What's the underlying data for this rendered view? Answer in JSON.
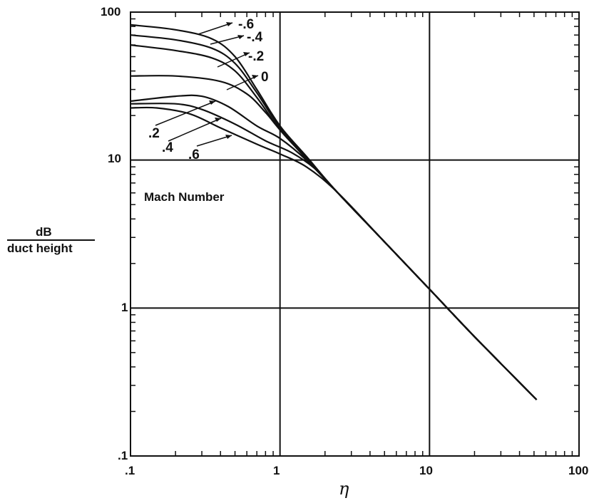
{
  "chart_data": {
    "type": "line",
    "title": "",
    "xlabel": "η",
    "ylabel_top": "dB",
    "ylabel_bottom": "duct height",
    "x_scale": "log",
    "y_scale": "log",
    "xlim": [
      0.1,
      100
    ],
    "ylim": [
      0.1,
      100
    ],
    "grid": true,
    "x_ticks": [
      {
        "value": 0.1,
        "label": ".1"
      },
      {
        "value": 1,
        "label": "1"
      },
      {
        "value": 10,
        "label": "10"
      },
      {
        "value": 100,
        "label": "100"
      }
    ],
    "y_ticks": [
      {
        "value": 0.1,
        "label": ".1"
      },
      {
        "value": 1,
        "label": "1"
      },
      {
        "value": 10,
        "label": "10"
      },
      {
        "value": 100,
        "label": "100"
      }
    ],
    "annotation": "Mach Number",
    "series": [
      {
        "name": "-.6",
        "points": [
          [
            0.1,
            82
          ],
          [
            0.2,
            76
          ],
          [
            0.35,
            66
          ],
          [
            0.5,
            50
          ],
          [
            0.7,
            30
          ],
          [
            1.0,
            17
          ],
          [
            1.5,
            10.6
          ],
          [
            2.4,
            6.1
          ],
          [
            5,
            2.8
          ],
          [
            10,
            1.34
          ],
          [
            20,
            0.64
          ],
          [
            52,
            0.24
          ]
        ]
      },
      {
        "name": "-.4",
        "points": [
          [
            0.1,
            70
          ],
          [
            0.2,
            65
          ],
          [
            0.35,
            57
          ],
          [
            0.5,
            45
          ],
          [
            0.7,
            28.5
          ],
          [
            1.0,
            16.5
          ],
          [
            1.5,
            10.5
          ],
          [
            2.4,
            6.1
          ],
          [
            5,
            2.8
          ],
          [
            10,
            1.34
          ],
          [
            20,
            0.64
          ],
          [
            52,
            0.24
          ]
        ]
      },
      {
        "name": "-.2",
        "points": [
          [
            0.1,
            60
          ],
          [
            0.2,
            55
          ],
          [
            0.35,
            49
          ],
          [
            0.5,
            40
          ],
          [
            0.7,
            26.5
          ],
          [
            1.0,
            16
          ],
          [
            1.5,
            10.3
          ],
          [
            2.4,
            6.1
          ],
          [
            5,
            2.8
          ],
          [
            10,
            1.34
          ],
          [
            20,
            0.64
          ],
          [
            52,
            0.24
          ]
        ]
      },
      {
        "name": "0",
        "points": [
          [
            0.1,
            37
          ],
          [
            0.2,
            37
          ],
          [
            0.4,
            34
          ],
          [
            0.6,
            28
          ],
          [
            0.8,
            21
          ],
          [
            1.0,
            16
          ],
          [
            1.5,
            10.2
          ],
          [
            2.4,
            6.1
          ],
          [
            5,
            2.8
          ],
          [
            10,
            1.34
          ],
          [
            20,
            0.64
          ],
          [
            52,
            0.24
          ]
        ]
      },
      {
        "name": ".2",
        "points": [
          [
            0.1,
            25
          ],
          [
            0.2,
            27
          ],
          [
            0.3,
            27
          ],
          [
            0.45,
            23
          ],
          [
            0.7,
            17
          ],
          [
            1.0,
            14
          ],
          [
            1.5,
            10
          ],
          [
            2.4,
            6.1
          ],
          [
            5,
            2.8
          ],
          [
            10,
            1.34
          ],
          [
            20,
            0.64
          ],
          [
            52,
            0.24
          ]
        ]
      },
      {
        "name": ".4",
        "points": [
          [
            0.1,
            24
          ],
          [
            0.2,
            24
          ],
          [
            0.3,
            22
          ],
          [
            0.5,
            17.5
          ],
          [
            0.8,
            13.5
          ],
          [
            1.2,
            11.2
          ],
          [
            1.7,
            8.8
          ],
          [
            2.4,
            6.1
          ],
          [
            5,
            2.8
          ],
          [
            10,
            1.34
          ],
          [
            20,
            0.64
          ],
          [
            52,
            0.24
          ]
        ]
      },
      {
        "name": ".6",
        "points": [
          [
            0.1,
            22.5
          ],
          [
            0.15,
            22.5
          ],
          [
            0.25,
            20.5
          ],
          [
            0.4,
            16.5
          ],
          [
            0.7,
            12.8
          ],
          [
            1.0,
            11
          ],
          [
            1.5,
            9
          ],
          [
            2.4,
            6.1
          ],
          [
            5,
            2.8
          ],
          [
            10,
            1.34
          ],
          [
            20,
            0.64
          ],
          [
            52,
            0.24
          ]
        ]
      }
    ]
  }
}
